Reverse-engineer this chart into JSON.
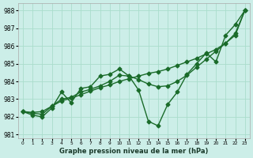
{
  "xlabel": "Graphe pression niveau de la mer (hPa)",
  "background_color": "#cceee8",
  "grid_color": "#aaddcc",
  "line_color": "#1a6b2a",
  "xlim": [
    -0.5,
    23.5
  ],
  "ylim": [
    980.8,
    988.4
  ],
  "yticks": [
    981,
    982,
    983,
    984,
    985,
    986,
    987,
    988
  ],
  "xticks": [
    0,
    1,
    2,
    3,
    4,
    5,
    6,
    7,
    8,
    9,
    10,
    11,
    12,
    13,
    14,
    15,
    16,
    17,
    18,
    19,
    20,
    21,
    22,
    23
  ],
  "series1_x": [
    0,
    1,
    2,
    3,
    4,
    5,
    6,
    7,
    8,
    9,
    10,
    11,
    12,
    13,
    14,
    15,
    16,
    17,
    18,
    19,
    20,
    21,
    22,
    23
  ],
  "series1_y": [
    982.3,
    982.1,
    982.0,
    982.5,
    983.4,
    982.8,
    983.6,
    983.7,
    984.3,
    984.4,
    984.7,
    984.3,
    983.5,
    981.75,
    981.5,
    982.7,
    983.4,
    984.4,
    985.0,
    985.6,
    985.1,
    986.6,
    987.2,
    988.0
  ],
  "series2_x": [
    0,
    1,
    2,
    3,
    4,
    5,
    6,
    7,
    8,
    9,
    10,
    11,
    12,
    13,
    14,
    15,
    16,
    17,
    18,
    19,
    20,
    21,
    22,
    23
  ],
  "series2_y": [
    982.3,
    982.2,
    982.15,
    982.6,
    983.0,
    983.1,
    983.4,
    983.55,
    983.75,
    984.0,
    984.35,
    984.3,
    984.1,
    983.85,
    983.7,
    983.75,
    984.0,
    984.35,
    984.8,
    985.25,
    985.7,
    986.15,
    986.7,
    988.0
  ],
  "series3_x": [
    0,
    1,
    2,
    3,
    4,
    5,
    6,
    7,
    8,
    9,
    10,
    11,
    12,
    13,
    14,
    15,
    16,
    17,
    18,
    19,
    20,
    21,
    22,
    23
  ],
  "series3_y": [
    982.3,
    982.25,
    982.3,
    982.6,
    982.9,
    983.05,
    983.25,
    983.45,
    983.65,
    983.8,
    984.0,
    984.15,
    984.3,
    984.45,
    984.55,
    984.7,
    984.9,
    985.1,
    985.3,
    985.55,
    985.8,
    986.15,
    986.6,
    988.0
  ],
  "marker": "D",
  "markersize": 2.5,
  "linewidth": 1.0
}
